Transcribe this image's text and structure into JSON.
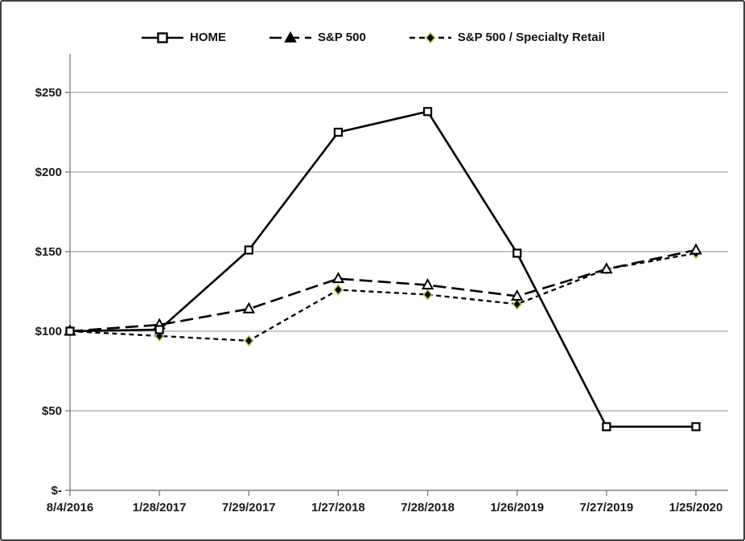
{
  "chart_data": {
    "type": "line",
    "title": "",
    "xlabel": "",
    "ylabel": "",
    "ylim": [
      0,
      270
    ],
    "grid": true,
    "legend_position": "top",
    "x": [
      "8/4/2016",
      "1/28/2017",
      "7/29/2017",
      "1/27/2018",
      "7/28/2018",
      "1/26/2019",
      "7/27/2019",
      "1/25/2020"
    ],
    "y_axis": [
      {
        "value": 250,
        "label": "$250"
      },
      {
        "value": 200,
        "label": "$200"
      },
      {
        "value": 150,
        "label": "$150"
      },
      {
        "value": 100,
        "label": "$100"
      },
      {
        "value": 50,
        "label": "$50"
      },
      {
        "value": 0,
        "label": "$-"
      }
    ],
    "series": [
      {
        "name": "HOME",
        "style": "solid",
        "marker": "square",
        "values": [
          100,
          101,
          151,
          225,
          238,
          149,
          40,
          40
        ]
      },
      {
        "name": "S&P 500",
        "style": "long-dash",
        "marker": "triangle",
        "values": [
          100,
          104,
          114,
          133,
          129,
          122,
          139,
          151
        ]
      },
      {
        "name": "S&P 500 / Specialty Retail",
        "style": "short-dash",
        "marker": "diamond",
        "values": [
          100,
          97,
          94,
          126,
          123,
          117,
          139,
          149
        ]
      }
    ],
    "colors": {
      "line": "#000000",
      "marker_fill": "#ffffff",
      "diamond_fill": "#000000",
      "diamond_edge": "#aec751",
      "gridline": "#a6a6a6",
      "axis": "#808080",
      "text": "#1a1a1a"
    }
  }
}
